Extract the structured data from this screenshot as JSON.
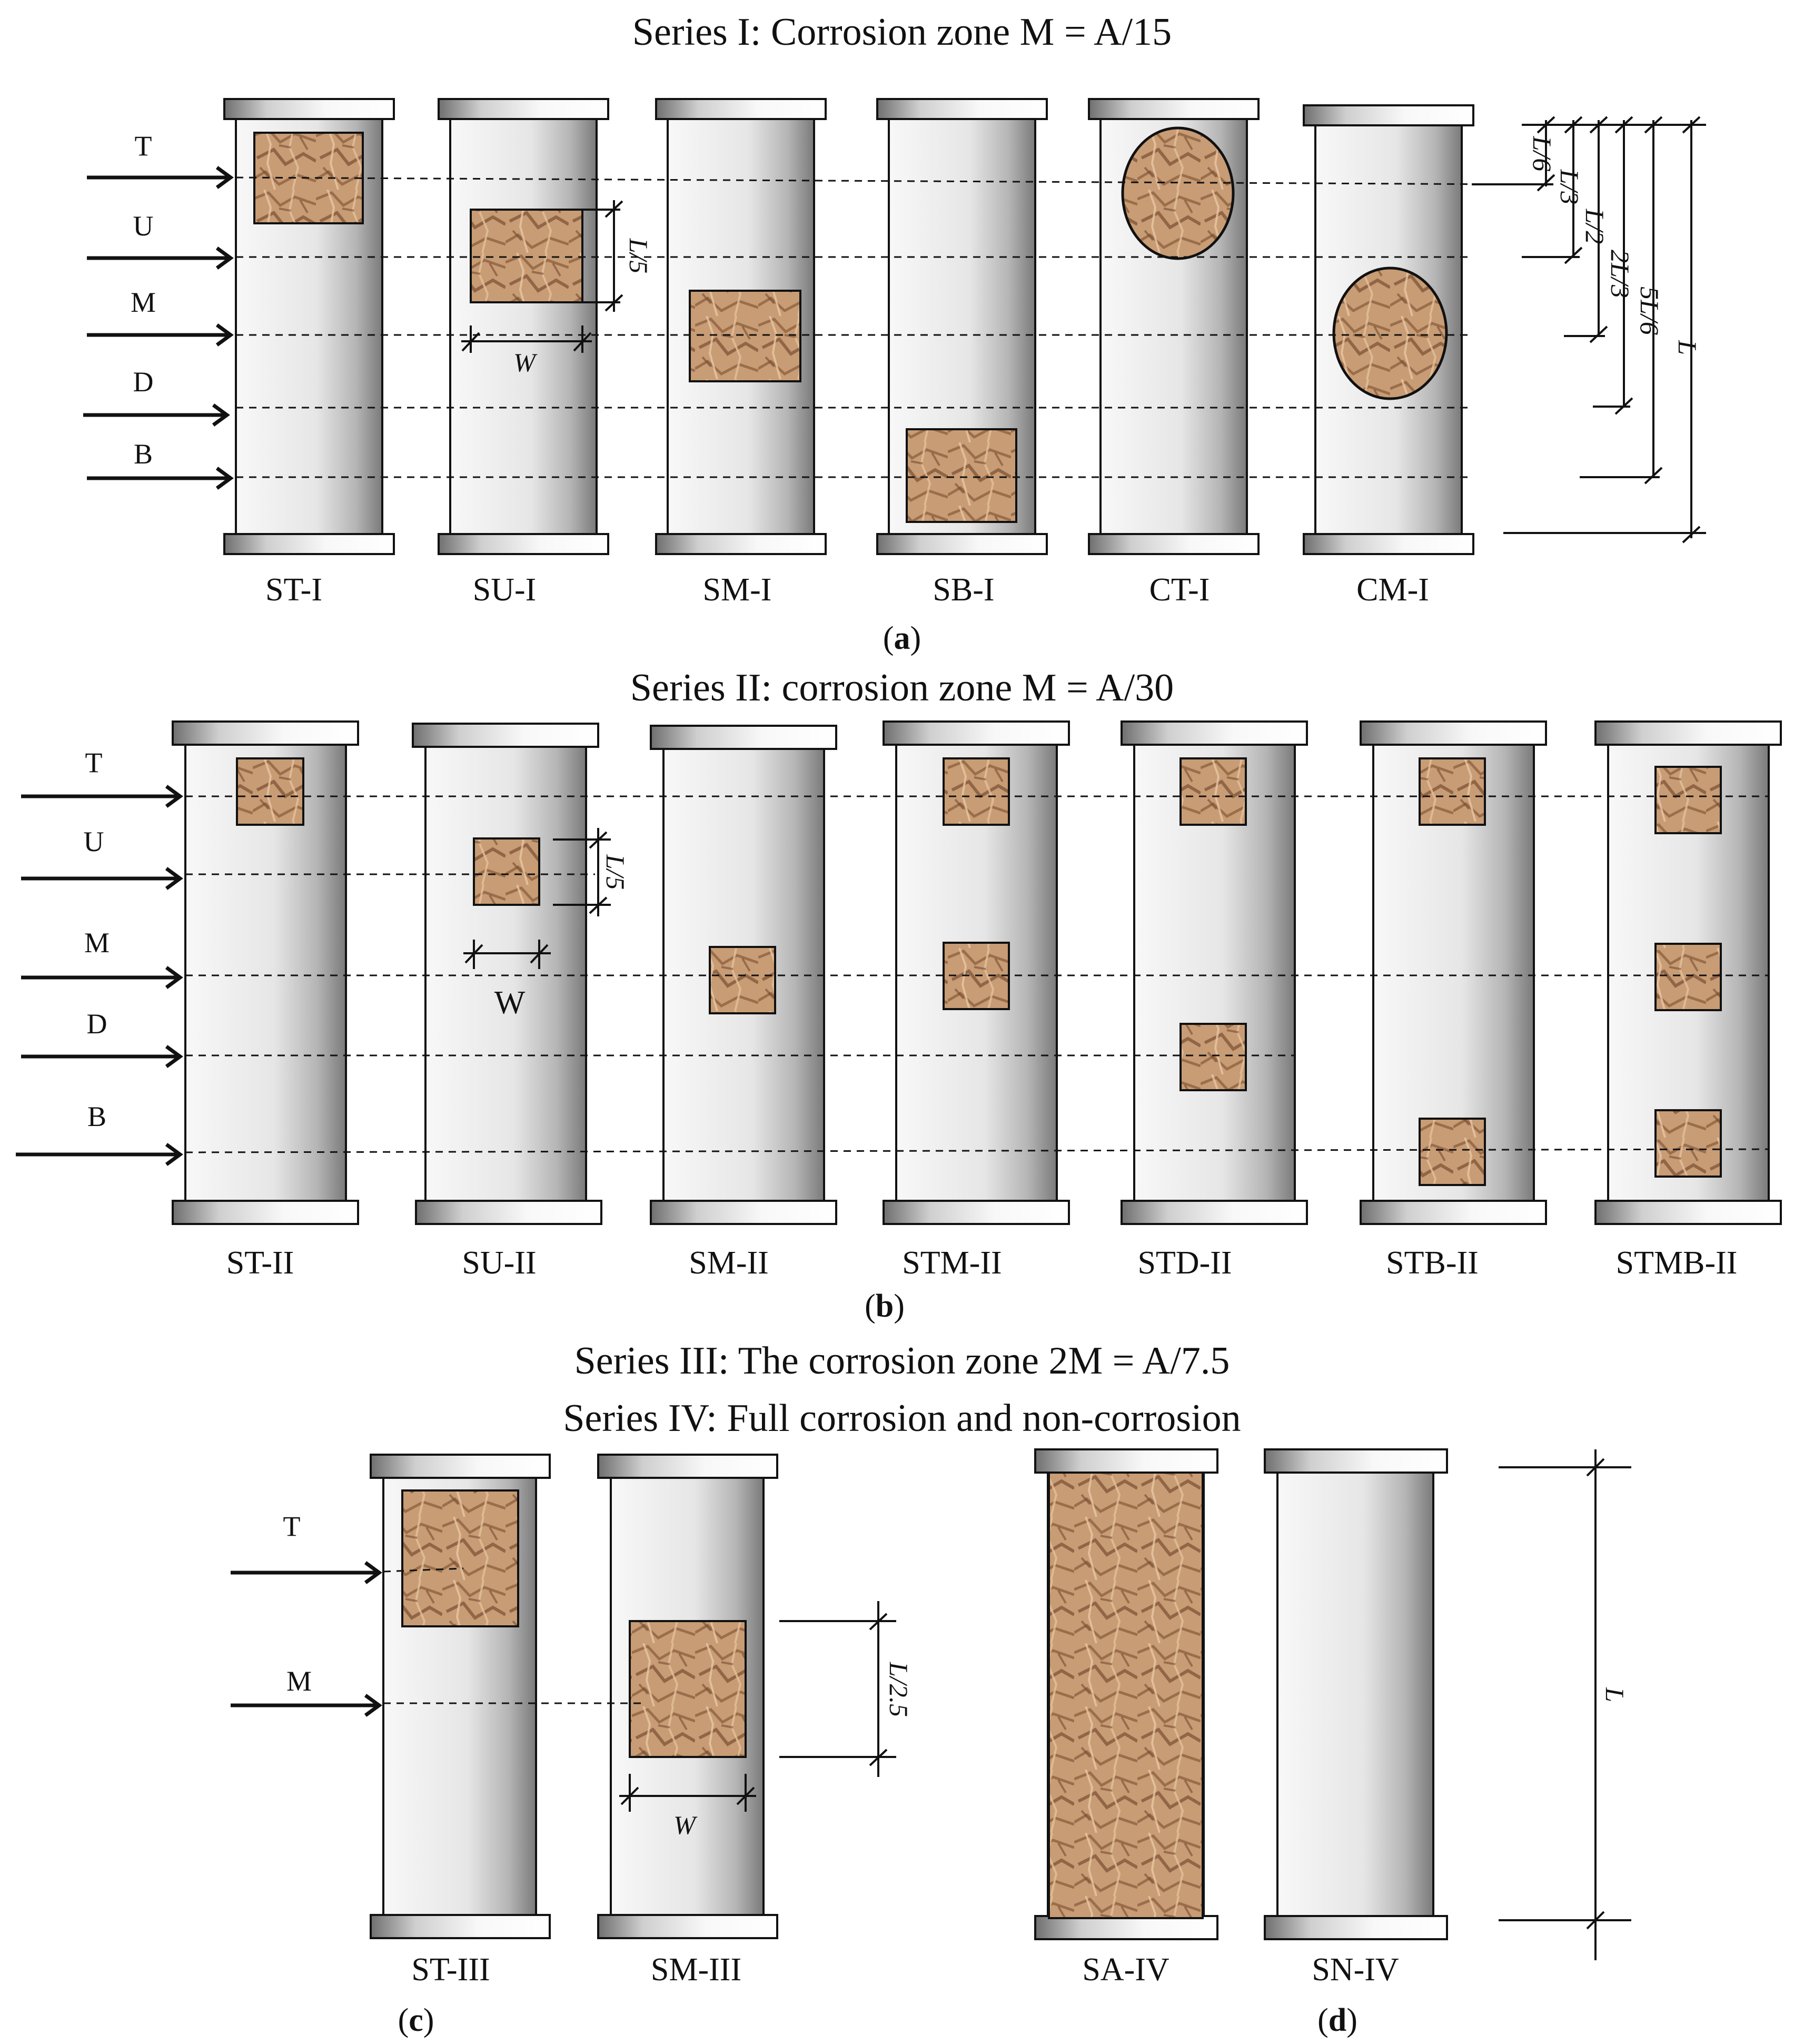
{
  "titles": {
    "series_1": "Series I: Corrosion zone M = A/15",
    "series_2": "Series II: corrosion zone M = A/30",
    "series_3": "Series III: The corrosion zone 2M = A/7.5",
    "series_4": "Series IV: Full corrosion and non-corrosion"
  },
  "panel_labels": {
    "a": {
      "open": "(",
      "letter": "a",
      "close": ")"
    },
    "b": {
      "open": "(",
      "letter": "b",
      "close": ")"
    },
    "c": {
      "open": "(",
      "letter": "c",
      "close": ")"
    },
    "d": {
      "open": "(",
      "letter": "d",
      "close": ")"
    }
  },
  "level_labels": {
    "T": "T",
    "U": "U",
    "M": "M",
    "D": "D",
    "B": "B"
  },
  "dimension_labels": {
    "L": "L",
    "W": "W",
    "W_upright": "W",
    "L_over_5": "L/5",
    "L_over_6": "L/6",
    "L_over_3": "L/3",
    "L_over_2": "L/2",
    "two_L_over_3": "2L/3",
    "five_L_over_6": "5L/6",
    "L_over_2_5": "L/2.5"
  },
  "columns": {
    "series_1": [
      "ST-I",
      "SU-I",
      "SM-I",
      "SB-I",
      "CT-I",
      "CM-I"
    ],
    "series_2": [
      "ST-II",
      "SU-II",
      "SM-II",
      "STM-II",
      "STD-II",
      "STB-II",
      "STMB-II"
    ],
    "series_3": [
      "ST-III",
      "SM-III"
    ],
    "series_4": [
      "SA-IV",
      "SN-IV"
    ]
  },
  "colors": {
    "corrosion_fill": "#c69a73",
    "corrosion_dark": "#8a5e3c",
    "column_shade_light": "#f7f7f7",
    "column_shade_dark": "#7d7d7d",
    "line": "#111111"
  }
}
